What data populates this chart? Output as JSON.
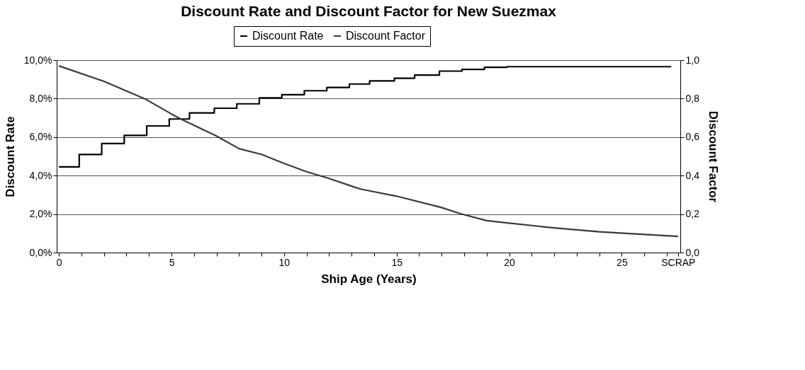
{
  "chart_data": {
    "type": "line",
    "title": "Discount Rate and Discount Factor for New Suezmax",
    "xlabel": "Ship Age (Years)",
    "ylabel": "Discount Rate",
    "y2label": "Discount Factor",
    "series": [
      {
        "name": "Discount Rate",
        "type": "step",
        "color": "#000000",
        "x": [
          0,
          0.9,
          1.9,
          2.9,
          3.9,
          4.9,
          5.8,
          6.9,
          7.9,
          8.9,
          9.9,
          10.9,
          11.9,
          12.9,
          13.8,
          14.9,
          15.8,
          16.9,
          17.9,
          18.9,
          19.9,
          27.2
        ],
        "values": [
          4.45,
          5.1,
          5.67,
          6.09,
          6.58,
          6.94,
          7.26,
          7.5,
          7.73,
          8.04,
          8.2,
          8.41,
          8.58,
          8.76,
          8.92,
          9.06,
          9.22,
          9.43,
          9.52,
          9.63,
          9.66,
          9.66
        ]
      },
      {
        "name": "Discount Factor",
        "type": "line",
        "axis": "y2",
        "color": "#3a3a3a",
        "x": [
          0,
          2,
          3.8,
          5,
          5.4,
          7,
          8,
          9,
          10,
          11,
          12,
          13,
          13.4,
          15,
          17,
          17.8,
          19,
          20,
          22,
          24,
          26,
          27.5
        ],
        "values": [
          0.97,
          0.89,
          0.8,
          0.72,
          0.695,
          0.606,
          0.54,
          0.51,
          0.463,
          0.42,
          0.385,
          0.345,
          0.33,
          0.293,
          0.234,
          0.203,
          0.166,
          0.153,
          0.128,
          0.108,
          0.094,
          0.084
        ]
      }
    ],
    "xlim": [
      -0.1,
      27.6
    ],
    "xticks": [
      0,
      {
        "value": 1,
        "label": null
      },
      {
        "value": 2,
        "label": null
      },
      {
        "value": 3,
        "label": null
      },
      {
        "value": 4,
        "label": null
      },
      5,
      {
        "value": 6,
        "label": null
      },
      {
        "value": 7,
        "label": null
      },
      {
        "value": 8,
        "label": null
      },
      {
        "value": 9,
        "label": null
      },
      10,
      {
        "value": 11,
        "label": null
      },
      {
        "value": 12,
        "label": null
      },
      {
        "value": 13,
        "label": null
      },
      {
        "value": 14,
        "label": null
      },
      15,
      {
        "value": 16,
        "label": null
      },
      {
        "value": 17,
        "label": null
      },
      {
        "value": 18,
        "label": null
      },
      {
        "value": 19,
        "label": null
      },
      20,
      {
        "value": 21,
        "label": null
      },
      {
        "value": 22,
        "label": null
      },
      {
        "value": 23,
        "label": null
      },
      {
        "value": 24,
        "label": null
      },
      25,
      {
        "value": 26,
        "label": null
      },
      {
        "value": 27,
        "label": null
      },
      {
        "value": 27.5,
        "label": "SCRAP"
      }
    ],
    "ylim": [
      0,
      10
    ],
    "yticks": [
      {
        "value": 0,
        "label": "0,0%"
      },
      {
        "value": 2,
        "label": "2,0%"
      },
      {
        "value": 4,
        "label": "4,0%"
      },
      {
        "value": 6,
        "label": "6,0%"
      },
      {
        "value": 8,
        "label": "8,0%"
      },
      {
        "value": 10,
        "label": "10,0%"
      }
    ],
    "y2lim": [
      0,
      1
    ],
    "y2ticks": [
      {
        "value": 0,
        "label": "0,0"
      },
      {
        "value": 0.2,
        "label": "0,2"
      },
      {
        "value": 0.4,
        "label": "0,4"
      },
      {
        "value": 0.6,
        "label": "0,6"
      },
      {
        "value": 0.8,
        "label": "0,8"
      },
      {
        "value": 1,
        "label": "1,0"
      }
    ],
    "grid": "y",
    "legend": "top",
    "marker": "none",
    "line_style": "solid"
  }
}
